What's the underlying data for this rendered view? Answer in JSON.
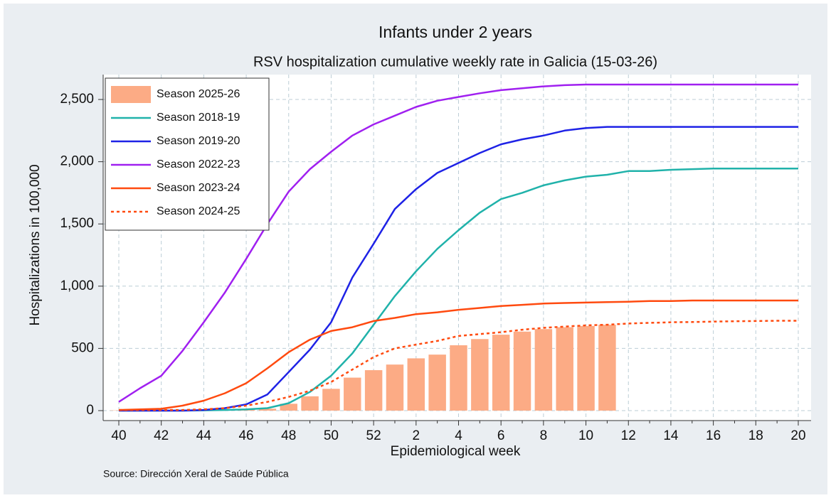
{
  "chart_data": {
    "type": "line",
    "title": "Infants under 2 years",
    "subtitle": "RSV hospitalization cumulative weekly rate in Galicia (15-03-26)",
    "xlabel": "Epidemiological week",
    "ylabel": "Hospitalizations in 100,000",
    "source": "Source: Dirección Xeral de Saúde Pública",
    "categories": [
      "40",
      null,
      "42",
      null,
      "44",
      null,
      "46",
      null,
      "48",
      null,
      "50",
      null,
      "52",
      null,
      "2",
      null,
      "4",
      null,
      "6",
      null,
      "8",
      null,
      "10",
      null,
      "12",
      null,
      "14",
      null,
      "16",
      null,
      "18",
      null,
      "20"
    ],
    "ylim": [
      -80,
      2700
    ],
    "yticks": [
      0,
      500,
      {
        "value": 1000,
        "label": "1,000"
      },
      {
        "value": 1500,
        "label": "1,500"
      },
      {
        "value": 2000,
        "label": "2,000"
      },
      {
        "value": 2500,
        "label": "2,500"
      }
    ],
    "grid": true,
    "legend": "upper left",
    "series": [
      {
        "name": "Season 2025-26",
        "type": "bar",
        "color": "#fcab85",
        "values": [
          2,
          3,
          4,
          5,
          6,
          8,
          10,
          15,
          55,
          115,
          175,
          265,
          325,
          370,
          420,
          450,
          525,
          575,
          610,
          635,
          655,
          670,
          680,
          690,
          null,
          null,
          null,
          null,
          null,
          null,
          null,
          null,
          null
        ]
      },
      {
        "name": "Season 2018-19",
        "type": "line",
        "color": "#20b2aa",
        "values": [
          0,
          0,
          0,
          0,
          2,
          5,
          10,
          20,
          60,
          150,
          280,
          460,
          690,
          920,
          1120,
          1300,
          1450,
          1590,
          1700,
          1750,
          1810,
          1850,
          1880,
          1895,
          1925,
          1925,
          1935,
          1940,
          1945,
          1945,
          1945,
          1945,
          1945
        ]
      },
      {
        "name": "Season 2019-20",
        "type": "line",
        "color": "#1e22e6",
        "values": [
          0,
          0,
          0,
          0,
          5,
          20,
          50,
          130,
          310,
          490,
          710,
          1070,
          1340,
          1620,
          1780,
          1910,
          1990,
          2070,
          2140,
          2180,
          2210,
          2250,
          2270,
          2280,
          2280,
          2280,
          2280,
          2280,
          2280,
          2280,
          2280,
          2280,
          2280
        ]
      },
      {
        "name": "Season 2022-23",
        "type": "line",
        "color": "#a020f0",
        "values": [
          70,
          180,
          280,
          480,
          710,
          950,
          1220,
          1500,
          1760,
          1940,
          2080,
          2210,
          2300,
          2370,
          2440,
          2490,
          2520,
          2550,
          2575,
          2590,
          2605,
          2615,
          2620,
          2620,
          2620,
          2620,
          2620,
          2620,
          2620,
          2620,
          2620,
          2620,
          2620
        ]
      },
      {
        "name": "Season 2023-24",
        "type": "line",
        "color": "#ff4a0f",
        "values": [
          5,
          10,
          15,
          40,
          80,
          140,
          220,
          340,
          470,
          570,
          640,
          670,
          720,
          745,
          775,
          790,
          810,
          825,
          840,
          850,
          860,
          865,
          868,
          872,
          875,
          880,
          880,
          885,
          885,
          885,
          885,
          885,
          885
        ]
      },
      {
        "name": "Season 2024-25",
        "type": "line",
        "dash": "dotted",
        "color": "#ff4a0f",
        "values": [
          5,
          5,
          5,
          5,
          10,
          20,
          40,
          70,
          110,
          160,
          230,
          330,
          430,
          500,
          530,
          560,
          600,
          615,
          630,
          650,
          665,
          675,
          685,
          690,
          700,
          705,
          710,
          712,
          715,
          718,
          720,
          722,
          722
        ]
      }
    ]
  }
}
